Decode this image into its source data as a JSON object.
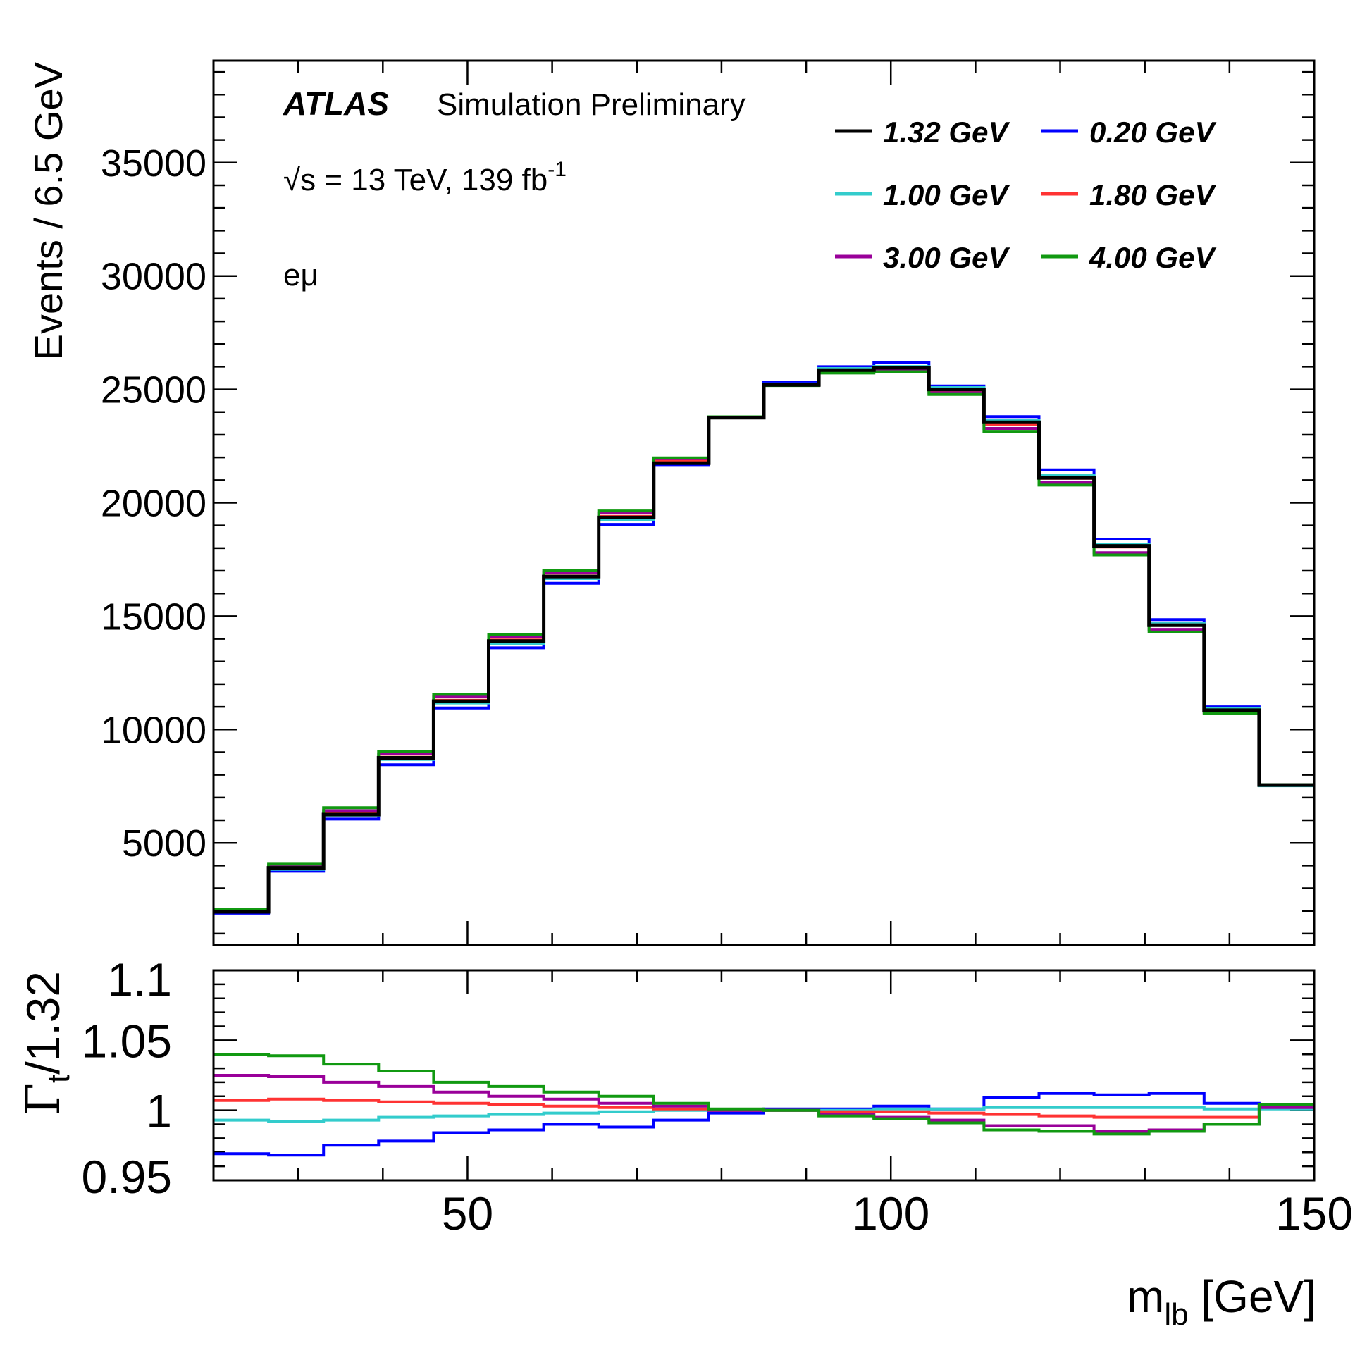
{
  "chart_data": {
    "type": "line",
    "layout": "stacked-panels-shared-x",
    "label_atlas": "ATLAS",
    "label_status": "Simulation Preliminary",
    "label_energy_prefix": "√s = 13 TeV, 139 fb",
    "label_energy_exp": "-1",
    "label_channel": "eμ",
    "xlabel_main": "m",
    "xlabel_sub": "lb",
    "xlabel_unit": " [GeV]",
    "xlim": [
      20,
      150
    ],
    "x_ticks": [
      50,
      100,
      150
    ],
    "x_tick_labels": [
      "50",
      "100",
      "150"
    ],
    "bin_edges": [
      20,
      26.5,
      33,
      39.5,
      46,
      52.5,
      59,
      65.5,
      72,
      78.5,
      85,
      91.5,
      98,
      104.5,
      111,
      117.5,
      124,
      130.5,
      137,
      143.5,
      150
    ],
    "grid": false,
    "legend_placement": "top-right",
    "top_panel": {
      "ylabel": "Events / 6.5 GeV",
      "ylim": [
        500,
        39500
      ],
      "y_ticks": [
        5000,
        10000,
        15000,
        20000,
        25000,
        30000,
        35000
      ],
      "y_tick_labels": [
        "5000",
        "10000",
        "15000",
        "20000",
        "25000",
        "30000",
        "35000"
      ]
    },
    "bottom_panel": {
      "ylabel_main": "Γ",
      "ylabel_sub": "t",
      "ylabel_rest": "/1.32",
      "ylim": [
        0.95,
        1.1
      ],
      "y_ticks": [
        0.95,
        1,
        1.05,
        1.1
      ],
      "y_tick_labels": [
        "0.95",
        "1",
        "1.05",
        "1.1"
      ]
    },
    "series": [
      {
        "name": "0.20 GeV",
        "color": "#0000ff",
        "width": 4,
        "values": [
          1900,
          3750,
          6050,
          8450,
          10950,
          13600,
          16450,
          19050,
          21650,
          23750,
          25300,
          26000,
          26200,
          25150,
          23800,
          21450,
          18400,
          14850,
          11000,
          7550
        ],
        "ratio": [
          0.969,
          0.968,
          0.975,
          0.978,
          0.984,
          0.986,
          0.99,
          0.988,
          0.993,
          0.998,
          1.001,
          1.001,
          1.003,
          1.001,
          1.009,
          1.012,
          1.011,
          1.012,
          1.005,
          1.003
        ]
      },
      {
        "name": "1.00 GeV",
        "color": "#33cccc",
        "width": 4,
        "values": [
          1950,
          3830,
          6220,
          8680,
          11170,
          13800,
          16660,
          19270,
          21820,
          23770,
          25240,
          25920,
          26010,
          25080,
          23630,
          21220,
          18180,
          14690,
          10920,
          7520
        ],
        "ratio": [
          0.993,
          0.992,
          0.993,
          0.995,
          0.996,
          0.997,
          0.998,
          0.999,
          1.0,
          1.0,
          1.0,
          1.0,
          1.001,
          1.001,
          1.002,
          1.002,
          1.002,
          1.002,
          1.001,
          1.001
        ]
      },
      {
        "name": "1.80 GeV",
        "color": "#ff3333",
        "width": 4,
        "values": [
          1980,
          3930,
          6310,
          8780,
          11290,
          13950,
          16770,
          19400,
          21850,
          23790,
          25220,
          25840,
          25900,
          24950,
          23450,
          21080,
          18050,
          14610,
          10860,
          7540
        ],
        "ratio": [
          1.007,
          1.008,
          1.007,
          1.006,
          1.005,
          1.004,
          1.003,
          1.002,
          1.001,
          1.0,
          1.0,
          0.999,
          0.999,
          0.998,
          0.997,
          0.996,
          0.995,
          0.995,
          0.995,
          1.003
        ]
      },
      {
        "name": "3.00 GeV",
        "color": "#990099",
        "width": 4,
        "values": [
          2040,
          4000,
          6420,
          8920,
          11450,
          14100,
          16940,
          19550,
          21950,
          23780,
          25190,
          25770,
          25820,
          24850,
          23280,
          20900,
          17800,
          14420,
          10760,
          7560
        ],
        "ratio": [
          1.025,
          1.024,
          1.02,
          1.017,
          1.013,
          1.01,
          1.008,
          1.005,
          1.003,
          1.0,
          1.0,
          0.997,
          0.995,
          0.993,
          0.989,
          0.989,
          0.985,
          0.986,
          0.99,
          1.002
        ]
      },
      {
        "name": "4.00 GeV",
        "color": "#119911",
        "width": 4,
        "values": [
          2070,
          4060,
          6550,
          9030,
          11550,
          14200,
          17000,
          19640,
          21980,
          23790,
          25170,
          25720,
          25780,
          24780,
          23150,
          20780,
          17700,
          14300,
          10700,
          7570
        ],
        "ratio": [
          1.04,
          1.039,
          1.033,
          1.028,
          1.02,
          1.017,
          1.013,
          1.01,
          1.005,
          1.001,
          1.0,
          0.996,
          0.994,
          0.991,
          0.986,
          0.985,
          0.983,
          0.985,
          0.99,
          1.004
        ]
      },
      {
        "name": "1.32 GeV",
        "color": "#000000",
        "width": 5,
        "values": [
          1960,
          3900,
          6250,
          8750,
          11250,
          13900,
          16750,
          19350,
          21750,
          23750,
          25200,
          25850,
          25950,
          25000,
          23550,
          21100,
          18100,
          14600,
          10850,
          7550
        ],
        "ratio": null
      }
    ],
    "legend": [
      {
        "name": "1.32 GeV",
        "color": "#000000",
        "col": 0,
        "row": 0
      },
      {
        "name": "0.20 GeV",
        "color": "#0000ff",
        "col": 1,
        "row": 0
      },
      {
        "name": "1.00 GeV",
        "color": "#33cccc",
        "col": 0,
        "row": 1
      },
      {
        "name": "1.80 GeV",
        "color": "#ff3333",
        "col": 1,
        "row": 1
      },
      {
        "name": "3.00 GeV",
        "color": "#990099",
        "col": 0,
        "row": 2
      },
      {
        "name": "4.00 GeV",
        "color": "#119911",
        "col": 1,
        "row": 2
      }
    ]
  }
}
